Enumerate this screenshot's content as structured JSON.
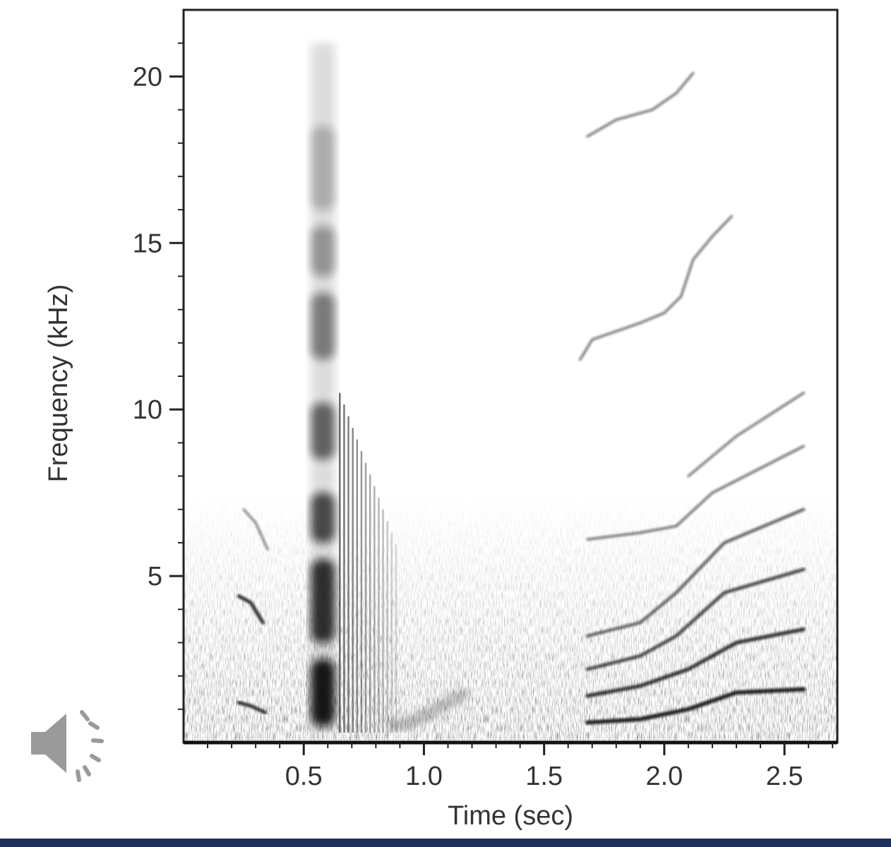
{
  "colors": {
    "bottom_bar": "#1f2f5a",
    "ink": "#222222",
    "speaker": "#9a9a9a"
  },
  "speaker": {
    "icon": "speaker-icon"
  },
  "chart_data": {
    "type": "heatmap",
    "title": "",
    "xlabel": "Time (sec)",
    "ylabel": "Frequency (kHz)",
    "xlim": [
      0,
      2.72
    ],
    "ylim": [
      0,
      22
    ],
    "x_ticks": [
      0.5,
      1.0,
      1.5,
      2.0,
      2.5
    ],
    "x_tick_labels": [
      "0.5",
      "1.0",
      "1.5",
      "2.0",
      "2.5"
    ],
    "y_ticks": [
      5,
      10,
      15,
      20
    ],
    "y_tick_labels": [
      "5",
      "10",
      "15",
      "20"
    ],
    "grid": false,
    "colormap": "grayscale-inverted",
    "broadband_bursts": [
      {
        "t_start": 0.53,
        "t_end": 0.63,
        "f_low": 0.3,
        "f_high": 21.0,
        "bands_kHz": [
          [
            0.5,
            2.5
          ],
          [
            3.0,
            5.5
          ],
          [
            6.0,
            7.5
          ],
          [
            8.5,
            10.2
          ],
          [
            11.5,
            13.5
          ],
          [
            14.0,
            15.5
          ],
          [
            16.0,
            18.5
          ]
        ]
      }
    ],
    "early_calls": [
      {
        "name": "",
        "points": [
          [
            0.23,
            4.4
          ],
          [
            0.28,
            4.2
          ],
          [
            0.33,
            3.6
          ]
        ]
      },
      {
        "name": "",
        "points": [
          [
            0.23,
            1.2
          ],
          [
            0.28,
            1.1
          ],
          [
            0.34,
            0.9
          ]
        ]
      },
      {
        "name": "",
        "points": [
          [
            0.25,
            7.0
          ],
          [
            0.3,
            6.6
          ],
          [
            0.35,
            5.8
          ]
        ]
      }
    ],
    "harmonic_series": [
      {
        "name": "",
        "points": [
          [
            1.68,
            0.6
          ],
          [
            1.9,
            0.7
          ],
          [
            2.1,
            1.0
          ],
          [
            2.3,
            1.5
          ],
          [
            2.58,
            1.6
          ]
        ]
      },
      {
        "name": "",
        "points": [
          [
            1.68,
            1.4
          ],
          [
            1.9,
            1.7
          ],
          [
            2.1,
            2.2
          ],
          [
            2.3,
            3.0
          ],
          [
            2.58,
            3.4
          ]
        ]
      },
      {
        "name": "",
        "points": [
          [
            1.68,
            2.2
          ],
          [
            1.9,
            2.6
          ],
          [
            2.05,
            3.2
          ],
          [
            2.25,
            4.5
          ],
          [
            2.58,
            5.2
          ]
        ]
      },
      {
        "name": "",
        "points": [
          [
            1.68,
            3.2
          ],
          [
            1.9,
            3.6
          ],
          [
            2.05,
            4.5
          ],
          [
            2.25,
            6.0
          ],
          [
            2.58,
            7.0
          ]
        ]
      },
      {
        "name": "",
        "points": [
          [
            1.68,
            6.1
          ],
          [
            1.9,
            6.3
          ],
          [
            2.05,
            6.5
          ],
          [
            2.2,
            7.5
          ],
          [
            2.58,
            8.9
          ]
        ]
      },
      {
        "name": "",
        "points": [
          [
            2.1,
            8.0
          ],
          [
            2.3,
            9.2
          ],
          [
            2.58,
            10.5
          ]
        ]
      },
      {
        "name": "",
        "points": [
          [
            1.65,
            11.5
          ],
          [
            1.7,
            12.1
          ],
          [
            1.9,
            12.6
          ],
          [
            2.0,
            12.9
          ],
          [
            2.07,
            13.4
          ],
          [
            2.12,
            14.5
          ],
          [
            2.2,
            15.2
          ],
          [
            2.28,
            15.8
          ]
        ]
      },
      {
        "name": "",
        "points": [
          [
            1.68,
            18.2
          ],
          [
            1.8,
            18.7
          ],
          [
            1.95,
            19.0
          ],
          [
            2.05,
            19.5
          ],
          [
            2.12,
            20.1
          ]
        ]
      }
    ],
    "tail_sweep": {
      "points": [
        [
          0.85,
          0.5
        ],
        [
          0.95,
          0.6
        ],
        [
          1.05,
          1.0
        ],
        [
          1.18,
          1.5
        ]
      ]
    }
  }
}
